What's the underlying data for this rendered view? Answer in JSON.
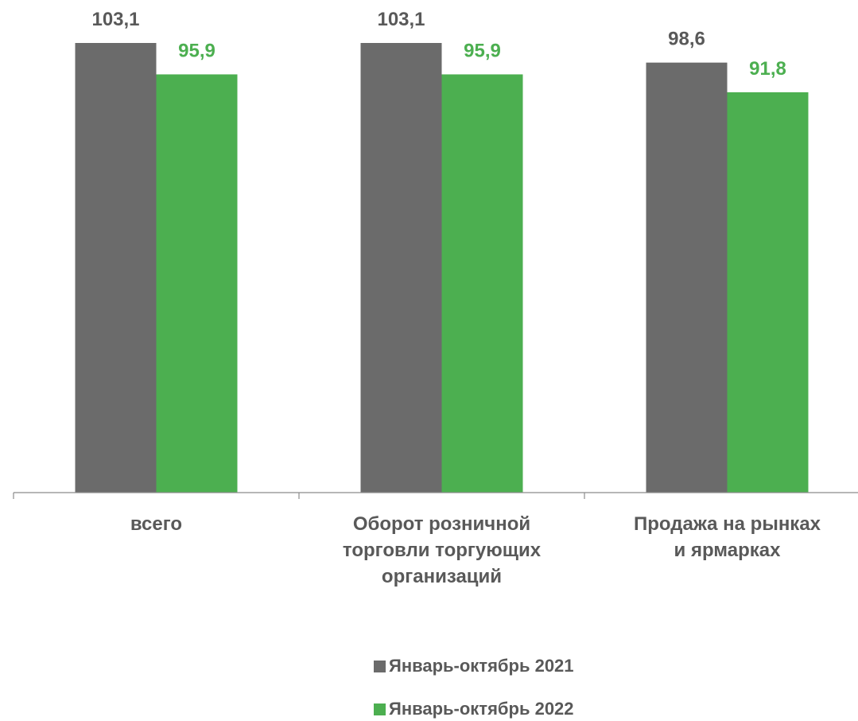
{
  "chart_data": {
    "type": "bar",
    "categories": [
      [
        "всего"
      ],
      [
        "Оборот розничной",
        "торговли торгующих",
        "организаций"
      ],
      [
        "Продажа на рынках",
        "и ярмарках"
      ]
    ],
    "series": [
      {
        "name": "Январь-октябрь 2021",
        "values": [
          103.1,
          103.1,
          98.6
        ],
        "labels": [
          "103,1",
          "103,1",
          "98,6"
        ],
        "color": "#6b6b6b",
        "label_color": "#595959"
      },
      {
        "name": "Январь-октябрь 2022",
        "values": [
          95.9,
          95.9,
          91.8
        ],
        "labels": [
          "95,9",
          "95,9",
          "91,8"
        ],
        "color": "#4caf50",
        "label_color": "#4caf50"
      }
    ],
    "title": "",
    "xlabel": "",
    "ylabel": "",
    "ylim": [
      0,
      103.1
    ],
    "grid": false,
    "legend": "bottom"
  }
}
